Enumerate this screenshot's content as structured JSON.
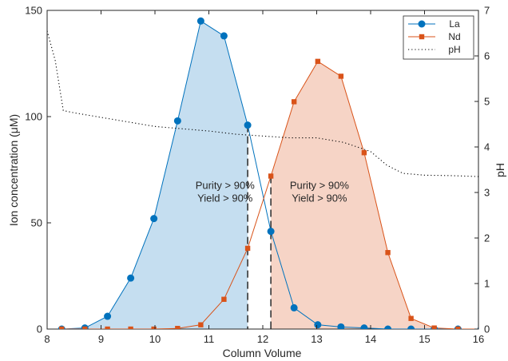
{
  "chart_data": {
    "type": "line",
    "xlabel": "Column Volume",
    "ylabel_left": "Ion concentration (μM)",
    "ylabel_right": "pH",
    "xlim": [
      8,
      16
    ],
    "ylim_left": [
      0,
      150
    ],
    "ylim_right": [
      0,
      7
    ],
    "x_ticks": [
      "8",
      "9",
      "10",
      "11",
      "12",
      "13",
      "14",
      "15",
      "16"
    ],
    "y_ticks_left": [
      "0",
      "50",
      "100",
      "150"
    ],
    "y_ticks_right": [
      "0",
      "1",
      "2",
      "3",
      "4",
      "5",
      "6",
      "7"
    ],
    "legend_position": "top-right",
    "series": [
      {
        "name": "La",
        "axis": "left",
        "color": "#0072BD",
        "marker": "circle",
        "x": [
          8.27,
          8.7,
          9.12,
          9.55,
          9.98,
          10.42,
          10.85,
          11.28,
          11.72,
          12.15,
          12.58,
          13.02,
          13.45,
          13.88,
          14.32,
          14.75,
          15.18,
          15.62,
          16.05
        ],
        "y": [
          0,
          0.5,
          6,
          24,
          52,
          98,
          145,
          138,
          96,
          46,
          10,
          2,
          1,
          0.5,
          0,
          0,
          0,
          0,
          0
        ]
      },
      {
        "name": "Nd",
        "axis": "left",
        "color": "#D95319",
        "marker": "square",
        "x": [
          8.27,
          8.7,
          9.12,
          9.55,
          9.98,
          10.42,
          10.85,
          11.28,
          11.72,
          12.15,
          12.58,
          13.02,
          13.45,
          13.88,
          14.32,
          14.75,
          15.18,
          15.62,
          16.05
        ],
        "y": [
          0,
          0,
          0,
          0,
          0,
          0.3,
          2,
          14,
          38,
          72,
          107,
          126,
          119,
          83,
          36,
          5,
          0.5,
          0,
          0
        ]
      },
      {
        "name": "pH",
        "axis": "right",
        "color": "#000000",
        "style": "dotted",
        "x": [
          8.0,
          8.15,
          8.3,
          8.5,
          9.0,
          9.5,
          10.0,
          10.5,
          11.0,
          11.5,
          12.0,
          12.5,
          13.0,
          13.5,
          14.0,
          14.3,
          14.6,
          15.0,
          15.5,
          16.0
        ],
        "y": [
          6.55,
          5.9,
          4.8,
          4.75,
          4.65,
          4.55,
          4.45,
          4.4,
          4.35,
          4.28,
          4.24,
          4.2,
          4.2,
          4.1,
          3.9,
          3.6,
          3.42,
          3.38,
          3.37,
          3.35
        ]
      }
    ],
    "shaded_regions": [
      {
        "series": "La",
        "x_end": 11.72,
        "color": "#C5DEF0"
      },
      {
        "series": "Nd",
        "x_start": 12.15,
        "color": "#F6D4C6"
      }
    ],
    "cutoff_lines": [
      11.72,
      12.15
    ],
    "annotations": [
      {
        "x": 11.3,
        "y": 66,
        "lines": [
          "Purity > 90%",
          "Yield  > 90%"
        ]
      },
      {
        "x": 13.05,
        "y": 66,
        "lines": [
          "Purity > 90%",
          "Yield  > 90%"
        ]
      }
    ]
  }
}
